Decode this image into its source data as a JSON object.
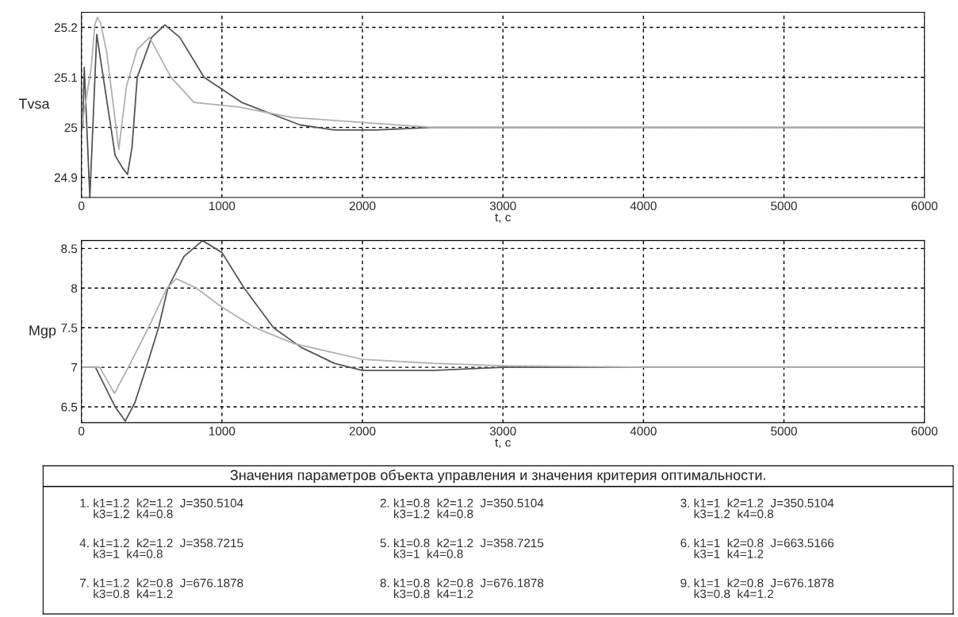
{
  "chart_data": [
    {
      "type": "line",
      "ylabel": "Tvsa",
      "xlabel": "t, c",
      "xlim": [
        0,
        6000
      ],
      "xticks": [
        0,
        1000,
        2000,
        3000,
        4000,
        5000,
        6000
      ],
      "ylim": [
        24.86,
        25.23
      ],
      "yticks": [
        24.9,
        25,
        25.1,
        25.2
      ],
      "grid": true,
      "line_style": "solid",
      "series": [
        {
          "color": "#555555",
          "x": [
            0,
            9,
            20,
            60,
            109,
            240,
            290,
            328,
            360,
            397,
            500,
            594,
            700,
            873,
            1140,
            1555,
            1800,
            2100,
            2500,
            3000,
            6000
          ],
          "values": [
            25.0,
            25.0,
            25.12,
            24.86,
            25.186,
            24.944,
            24.92,
            24.906,
            24.96,
            25.1,
            25.18,
            25.205,
            25.18,
            25.1,
            25.05,
            25.005,
            24.995,
            24.995,
            25.0,
            25.0,
            25.0
          ]
        },
        {
          "color": "#b0b0b0",
          "x": [
            0,
            30,
            70,
            95,
            114,
            135,
            180,
            266,
            321,
            397,
            485,
            638,
            801,
            1118,
            1500,
            2000,
            2500,
            6000
          ],
          "values": [
            25.0,
            25.05,
            25.12,
            25.205,
            25.22,
            25.21,
            25.15,
            24.956,
            25.083,
            25.156,
            25.18,
            25.1,
            25.05,
            25.041,
            25.02,
            25.01,
            25.0,
            25.0
          ]
        }
      ]
    },
    {
      "type": "line",
      "ylabel": "Mgp",
      "xlabel": "t, c",
      "xlim": [
        0,
        6000
      ],
      "xticks": [
        0,
        1000,
        2000,
        3000,
        4000,
        5000,
        6000
      ],
      "ylim": [
        6.3,
        8.6
      ],
      "yticks": [
        6.5,
        7,
        7.5,
        8,
        8.5
      ],
      "grid": true,
      "line_style": "solid",
      "series": [
        {
          "color": "#555555",
          "x": [
            0,
            100,
            240,
            312,
            380,
            462,
            549,
            615,
            730,
            862,
            1000,
            1158,
            1367,
            1565,
            1800,
            2000,
            2500,
            3000,
            6000
          ],
          "values": [
            7.0,
            7.0,
            6.5,
            6.32,
            6.55,
            7.0,
            7.5,
            8.0,
            8.4,
            8.6,
            8.45,
            8.0,
            7.5,
            7.25,
            7.05,
            6.96,
            6.96,
            7.0,
            7.0
          ]
        },
        {
          "color": "#b0b0b0",
          "x": [
            0,
            130,
            235,
            334,
            477,
            609,
            675,
            818,
            1000,
            1235,
            1510,
            2000,
            2500,
            3000,
            4000,
            6000
          ],
          "values": [
            7.0,
            7.0,
            6.67,
            7.0,
            7.5,
            8.0,
            8.12,
            8.0,
            7.76,
            7.5,
            7.3,
            7.1,
            7.05,
            7.02,
            7.0,
            7.0
          ]
        }
      ],
      "annotations": [
        "Значения параметров объекта управления и значения критерия оптимальности.",
        "1. k1=1.2  k2=1.2  J=350.5104\n    k3=1.2  k4=0.8",
        "2. k1=0.8  k2=1.2  J=350.5104\n    k3=1.2  k4=0.8",
        "3. k1=1  k2=1.2  J=350.5104\n    k3=1.2  k4=0.8",
        "4. k1=1.2  k2=1.2  J=358.7215\n    k3=1  k4=0.8",
        "5. k1=0.8  k2=1.2  J=358.7215\n    k3=1  k4=0.8",
        "6. k1=1  k2=0.8  J=663.5166\n    k3=1  k4=1.2",
        "7. k1=1.2  k2=0.8  J=676.1878\n    k3=0.8  k4=1.2",
        "8. k1=0.8  k2=0.8  J=676.1878\n    k3=0.8  k4=1.2",
        "9. k1=1  k2=0.8  J=676.1878\n    k3=0.8  k4=1.2"
      ]
    }
  ]
}
